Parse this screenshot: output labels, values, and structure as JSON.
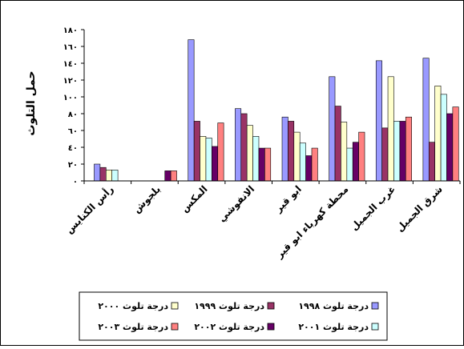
{
  "chart_data": {
    "type": "bar",
    "title": "",
    "xlabel": "",
    "ylabel": "حمل التلوث",
    "ylim": [
      0,
      180
    ],
    "yticks": [
      "٠",
      "٢٠",
      "٤٠",
      "٦٠",
      "٨٠",
      "١٠٠",
      "١٢٠",
      "١٤٠",
      "١٦٠",
      "١٨٠"
    ],
    "grid": false,
    "legend_position": "bottom",
    "categories": [
      "رأس الكنايس",
      "بلجوش",
      "المكس",
      "الانفوشي",
      "ابو قير",
      "محطة كهرباء ابو قير",
      "غرب الجميل",
      "شرق الجميل"
    ],
    "series": [
      {
        "name": "درجة تلوث ١٩٩٨",
        "color": "#9999FF",
        "values": [
          20,
          null,
          168,
          86,
          76,
          124,
          143,
          146
        ]
      },
      {
        "name": "درجة تلوث ١٩٩٩",
        "color": "#993366",
        "values": [
          16,
          null,
          71,
          80,
          71,
          89,
          63,
          46
        ]
      },
      {
        "name": "درجة تلوث ٢٠٠٠",
        "color": "#FFFFCC",
        "values": [
          13,
          null,
          53,
          66,
          58,
          70,
          124,
          113
        ]
      },
      {
        "name": "درجة تلوث ٢٠٠١",
        "color": "#CCFFFF",
        "values": [
          13,
          null,
          51,
          53,
          45,
          39,
          71,
          103
        ]
      },
      {
        "name": "درجة تلوث ٢٠٠٢",
        "color": "#660066",
        "values": [
          null,
          12,
          41,
          39,
          30,
          46,
          71,
          80
        ]
      },
      {
        "name": "درجة تلوث ٢٠٠٣",
        "color": "#FF8080",
        "values": [
          null,
          12,
          69,
          39,
          39,
          58,
          76,
          88
        ]
      }
    ]
  }
}
